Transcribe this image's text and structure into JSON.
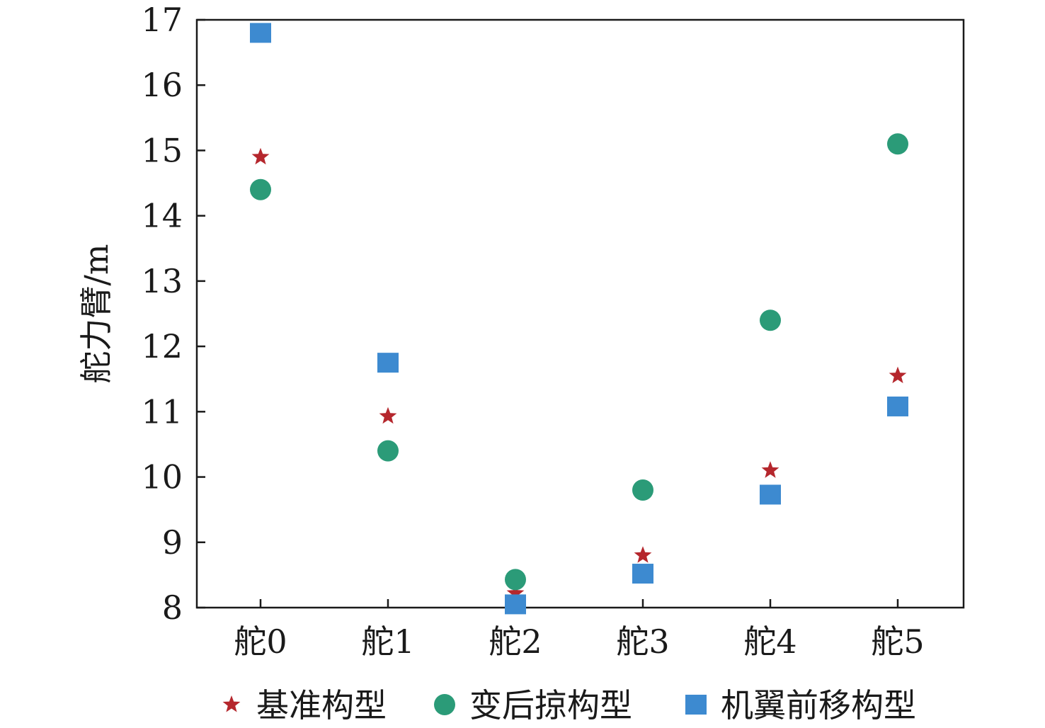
{
  "chart_data": {
    "type": "scatter",
    "title": "",
    "xlabel": "",
    "ylabel": "舵力臂/m",
    "categories": [
      "舵0",
      "舵1",
      "舵2",
      "舵3",
      "舵4",
      "舵5"
    ],
    "ylim": [
      8,
      17
    ],
    "yticks": [
      8,
      9,
      10,
      11,
      12,
      13,
      14,
      15,
      16,
      17
    ],
    "grid": false,
    "legend_position": "bottom",
    "series": [
      {
        "name": "基准构型",
        "marker": "star",
        "color": "#b5272d",
        "values": [
          14.9,
          10.93,
          8.22,
          8.8,
          10.1,
          11.55
        ]
      },
      {
        "name": "变后掠构型",
        "marker": "circle",
        "color": "#2b9b78",
        "values": [
          14.4,
          10.4,
          8.43,
          9.8,
          12.4,
          15.1
        ]
      },
      {
        "name": "机翼前移构型",
        "marker": "square",
        "color": "#3d8ad0",
        "values": [
          16.8,
          11.75,
          8.05,
          8.52,
          9.73,
          11.08
        ]
      }
    ]
  }
}
